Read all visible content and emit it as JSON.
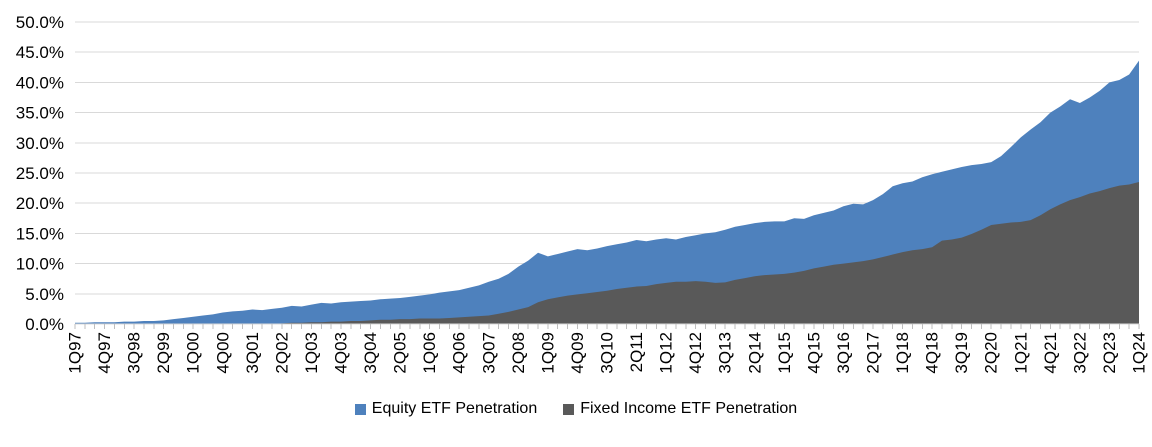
{
  "chart_data": {
    "type": "area",
    "mode": "overlay",
    "title": "",
    "xlabel": "",
    "ylabel": "",
    "ylim": [
      0,
      50
    ],
    "y_step": 5,
    "grid": "horizontal",
    "legend_position": "bottom-center",
    "x_start": "1Q97",
    "x_end": "1Q24",
    "points_per_tick": 3,
    "x_tick_labels": [
      "1Q97",
      "4Q97",
      "3Q98",
      "2Q99",
      "1Q00",
      "4Q00",
      "3Q01",
      "2Q02",
      "1Q03",
      "4Q03",
      "3Q04",
      "2Q05",
      "1Q06",
      "4Q06",
      "3Q07",
      "2Q08",
      "1Q09",
      "4Q09",
      "3Q10",
      "2Q11",
      "1Q12",
      "4Q12",
      "3Q13",
      "2Q14",
      "1Q15",
      "4Q15",
      "3Q16",
      "2Q17",
      "1Q18",
      "4Q18",
      "3Q19",
      "2Q20",
      "1Q21",
      "4Q21",
      "3Q22",
      "2Q23",
      "1Q24"
    ],
    "y_tick_labels": [
      "0.0%",
      "5.0%",
      "10.0%",
      "15.0%",
      "20.0%",
      "25.0%",
      "30.0%",
      "35.0%",
      "40.0%",
      "45.0%",
      "50.0%"
    ],
    "series": [
      {
        "name": "Equity ETF Penetration",
        "color": "#4E81BD",
        "unit": "%",
        "values": [
          0.2,
          0.2,
          0.3,
          0.3,
          0.3,
          0.4,
          0.4,
          0.5,
          0.5,
          0.6,
          0.8,
          1.0,
          1.2,
          1.4,
          1.6,
          1.9,
          2.1,
          2.2,
          2.4,
          2.3,
          2.5,
          2.7,
          3.0,
          2.9,
          3.2,
          3.5,
          3.4,
          3.6,
          3.7,
          3.8,
          3.9,
          4.1,
          4.2,
          4.3,
          4.5,
          4.7,
          4.9,
          5.2,
          5.4,
          5.6,
          6.0,
          6.4,
          7.0,
          7.5,
          8.3,
          9.5,
          10.5,
          11.8,
          11.2,
          11.6,
          12.0,
          12.4,
          12.2,
          12.5,
          12.9,
          13.2,
          13.5,
          13.9,
          13.7,
          14.0,
          14.2,
          14.0,
          14.4,
          14.7,
          15.0,
          15.2,
          15.6,
          16.1,
          16.4,
          16.7,
          16.9,
          17.0,
          17.0,
          17.5,
          17.4,
          18.0,
          18.4,
          18.8,
          19.5,
          19.9,
          19.8,
          20.5,
          21.5,
          22.8,
          23.3,
          23.6,
          24.3,
          24.8,
          25.2,
          25.6,
          26.0,
          26.3,
          26.5,
          26.8,
          27.8,
          29.3,
          30.9,
          32.2,
          33.4,
          35.0,
          36.0,
          37.2,
          36.6,
          37.5,
          38.6,
          40.0,
          40.4,
          41.3,
          43.6
        ]
      },
      {
        "name": "Fixed Income ETF Penetration",
        "color": "#595959",
        "unit": "%",
        "values": [
          0,
          0,
          0,
          0,
          0,
          0,
          0,
          0,
          0,
          0,
          0,
          0,
          0,
          0,
          0,
          0,
          0,
          0,
          0,
          0,
          0,
          0.1,
          0.2,
          0.2,
          0.3,
          0.3,
          0.4,
          0.4,
          0.5,
          0.5,
          0.6,
          0.7,
          0.7,
          0.8,
          0.8,
          0.9,
          0.9,
          0.9,
          1.0,
          1.1,
          1.2,
          1.3,
          1.4,
          1.7,
          2.0,
          2.4,
          2.8,
          3.6,
          4.1,
          4.4,
          4.7,
          4.9,
          5.1,
          5.3,
          5.5,
          5.8,
          6.0,
          6.2,
          6.3,
          6.6,
          6.8,
          7.0,
          7.0,
          7.1,
          7.0,
          6.8,
          6.9,
          7.3,
          7.6,
          7.9,
          8.1,
          8.2,
          8.3,
          8.5,
          8.8,
          9.2,
          9.5,
          9.8,
          10.0,
          10.2,
          10.4,
          10.7,
          11.1,
          11.5,
          11.9,
          12.2,
          12.4,
          12.7,
          13.8,
          14.0,
          14.3,
          14.9,
          15.6,
          16.4,
          16.6,
          16.8,
          16.9,
          17.2,
          18.0,
          19.0,
          19.8,
          20.5,
          21.0,
          21.6,
          22.0,
          22.5,
          22.9,
          23.1,
          23.5
        ]
      }
    ],
    "colors": {
      "gridline": "#D9D9D9",
      "tick": "#BFBFBF",
      "axis_text": "#000000"
    }
  }
}
